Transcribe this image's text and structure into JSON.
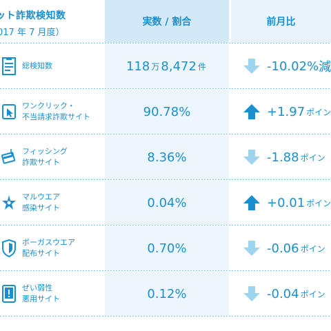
{
  "header": {
    "title_line1": "ット詐欺検知数",
    "title_line2": "017 年 7 月度）",
    "col_value": "実数 / 割合",
    "col_change": "前月比"
  },
  "colors": {
    "accent": "#1a8fd0",
    "arrow_up": "#1a8fd0",
    "arrow_down": "#9ed4ee",
    "header_value_bg": "#d4e9f7",
    "header_change_bg": "#e8f3fb",
    "value_bg": "#edf6fc"
  },
  "rows": [
    {
      "icon": "document-list-icon",
      "label_line1": "総検知数",
      "label_line2": "",
      "value_num1": "118",
      "value_unit1": "万",
      "value_num2": "8,472",
      "value_unit2": "件",
      "trend": "down",
      "change": "-10.02%",
      "change_unit": "減"
    },
    {
      "icon": "click-cursor-icon",
      "label_line1": "ワンクリック・",
      "label_line2": "不当請求詐欺サイト",
      "value": "90.78%",
      "trend": "up",
      "change": "+1.97",
      "change_unit": "ポイン"
    },
    {
      "icon": "fishing-card-icon",
      "label_line1": "フィッシング",
      "label_line2": "詐欺サイト",
      "value": "8.36%",
      "trend": "down",
      "change": "-1.88",
      "change_unit": "ポイン"
    },
    {
      "icon": "malware-bug-icon",
      "label_line1": "マルウエア",
      "label_line2": "感染サイト",
      "value": "0.04%",
      "trend": "up",
      "change": "+0.01",
      "change_unit": "ポイン"
    },
    {
      "icon": "shield-icon",
      "label_line1": "ボーガスウエア",
      "label_line2": "配布サイト",
      "value": "0.70%",
      "trend": "down",
      "change": "-0.06",
      "change_unit": "ポイン"
    },
    {
      "icon": "warning-tablet-icon",
      "label_line1": "ぜい弱性",
      "label_line2": "悪用サイト",
      "value": "0.12%",
      "trend": "down",
      "change": "-0.04",
      "change_unit": "ポイン"
    }
  ]
}
